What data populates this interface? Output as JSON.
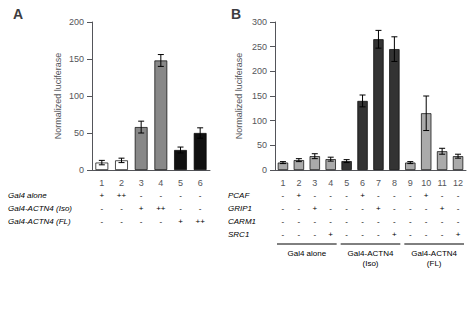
{
  "chart_data": [
    {
      "type": "bar",
      "title": "A",
      "categories": [
        "1",
        "2",
        "3",
        "4",
        "5",
        "6"
      ],
      "values": [
        10,
        13,
        58,
        148,
        27,
        50
      ],
      "errors": [
        3,
        3,
        8,
        8,
        4,
        7
      ],
      "colors": [
        "white",
        "white",
        "#888888",
        "#888888",
        "#111111",
        "#111111"
      ],
      "ylabel": "Normalized luciferase",
      "ylim": [
        0,
        200
      ],
      "yticks": [
        0,
        50,
        100,
        150,
        200
      ],
      "grid": false,
      "table_rows": [
        [
          "Gal4 alone",
          "+",
          "++",
          "-",
          "-",
          "-",
          "-"
        ],
        [
          "Gal4-ACTN4 (Iso)",
          "-",
          "-",
          "+",
          "++",
          "-",
          "-"
        ],
        [
          "Gal4-ACTN4 (FL)",
          "-",
          "-",
          "-",
          "-",
          "+",
          "++"
        ]
      ]
    },
    {
      "type": "bar",
      "title": "B",
      "categories": [
        "1",
        "2",
        "3",
        "4",
        "5",
        "6",
        "7",
        "8",
        "9",
        "10",
        "11",
        "12"
      ],
      "values": [
        15,
        20,
        28,
        22,
        18,
        140,
        265,
        245,
        15,
        115,
        38,
        28
      ],
      "errors": [
        2,
        3,
        5,
        4,
        3,
        12,
        18,
        25,
        2,
        35,
        6,
        4
      ],
      "colors": [
        "#aaaaaa",
        "#aaaaaa",
        "#aaaaaa",
        "#aaaaaa",
        "#333333",
        "#333333",
        "#333333",
        "#333333",
        "#aaaaaa",
        "#aaaaaa",
        "#aaaaaa",
        "#aaaaaa"
      ],
      "ylabel": "Normalized luciferase",
      "ylim": [
        0,
        300
      ],
      "yticks": [
        0,
        50,
        100,
        150,
        200,
        250,
        300
      ],
      "grid": false,
      "table_rows": [
        [
          "PCAF",
          "-",
          "+",
          "-",
          "-",
          "-",
          "+",
          "-",
          "-",
          "-",
          "+",
          "-",
          "-"
        ],
        [
          "GRIP1",
          "-",
          "-",
          "+",
          "-",
          "-",
          "-",
          "+",
          "-",
          "-",
          "-",
          "+",
          "-"
        ],
        [
          "CARM1",
          "-",
          "-",
          "-",
          "-",
          "-",
          "-",
          "-",
          "-",
          "-",
          "-",
          "-",
          "-"
        ],
        [
          "SRC1",
          "-",
          "-",
          "-",
          "+",
          "-",
          "-",
          "-",
          "+",
          "-",
          "-",
          "-",
          "+"
        ]
      ],
      "groups": [
        {
          "label": "Gal4 alone",
          "categories": [
            "1",
            "2",
            "3",
            "4"
          ]
        },
        {
          "label": "Gal4-ACTN4\n(Iso)",
          "categories": [
            "5",
            "6",
            "7",
            "8"
          ]
        },
        {
          "label": "Gal4-ACTN4\n(FL)",
          "categories": [
            "9",
            "10",
            "11",
            "12"
          ]
        }
      ]
    }
  ]
}
